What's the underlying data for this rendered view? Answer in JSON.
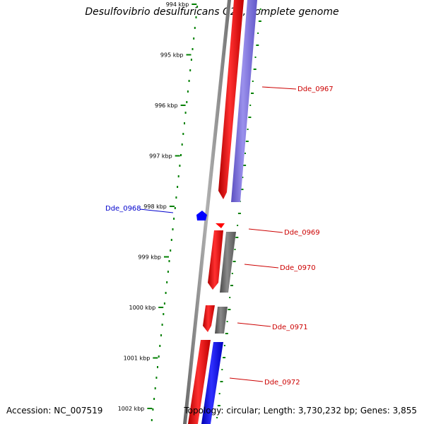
{
  "title": "Desulfovibrio desulfuricans G20, complete genome",
  "accession": "Accession: NC_007519",
  "footer": "Topology: circular; Length: 3,730,232 bp; Genes: 3,855",
  "colors": {
    "backbone": "#808080",
    "forward_gene": "#ff0000",
    "reverse_gene": "#0000ff",
    "reverse_gene_light": "#7a6fd8",
    "other_feature": "#6e6e6e",
    "tick": "#008000",
    "label_forward": "#cc0000",
    "label_reverse": "#0000cc"
  },
  "ticks": [
    "994 kbp",
    "995 kbp",
    "996 kbp",
    "997 kbp",
    "998 kbp",
    "999 kbp",
    "1000 kbp",
    "1001 kbp",
    "1002 kbp"
  ],
  "genes": [
    {
      "label": "Dde_0967",
      "strand": "forward"
    },
    {
      "label": "Dde_0968",
      "strand": "reverse"
    },
    {
      "label": "Dde_0969",
      "strand": "forward"
    },
    {
      "label": "Dde_0970",
      "strand": "forward"
    },
    {
      "label": "Dde_0971",
      "strand": "forward"
    },
    {
      "label": "Dde_0972",
      "strand": "forward"
    }
  ]
}
